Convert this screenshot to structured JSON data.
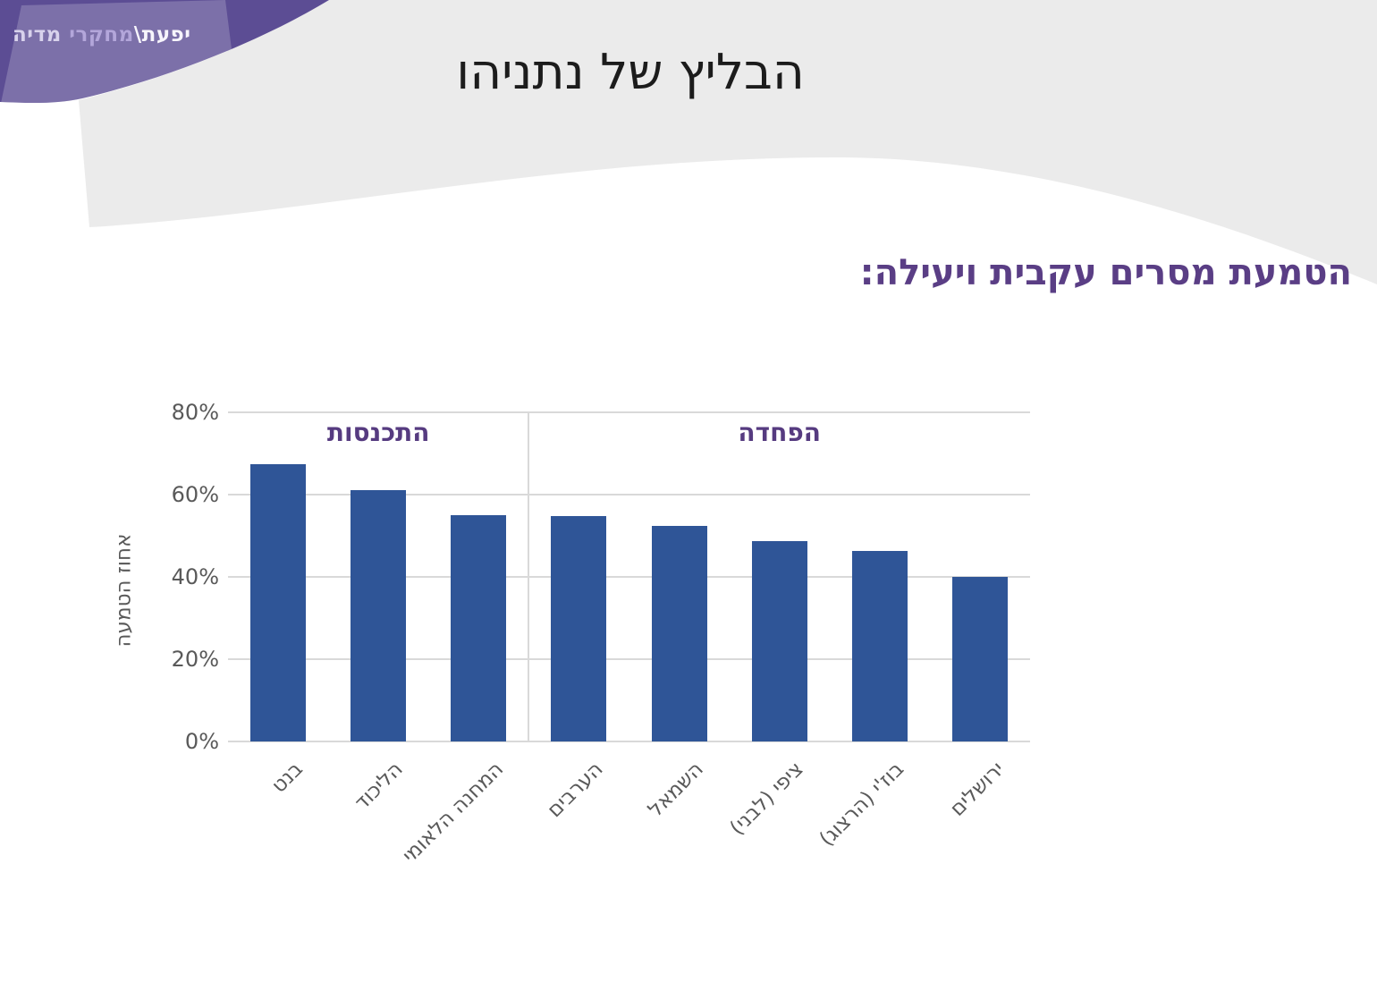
{
  "logo": {
    "brand": "יפעת\\",
    "middle": "מחקרי",
    "suffix": " מדיה"
  },
  "title": "הבליץ של נתניהו",
  "subtitle": "הטמעת מסרים עקבית ויעילה:",
  "chart_data": {
    "type": "bar",
    "title": "",
    "categories": [
      "בנט",
      "הליכוד",
      "המחנה הלאומי",
      "הערבים",
      "השמאל",
      "ציפי (לבני)",
      "בוז'י (הרצוג)",
      "ירושלים"
    ],
    "values": [
      67.5,
      61,
      55,
      54.8,
      52.3,
      48.6,
      46.3,
      40
    ],
    "xlabel": "",
    "ylabel": "אחוז הטמעה",
    "ylim": [
      0,
      80
    ],
    "yticks": [
      {
        "value": 0,
        "label": "0%"
      },
      {
        "value": 20,
        "label": "20%"
      },
      {
        "value": 40,
        "label": "40%"
      },
      {
        "value": 60,
        "label": "60%"
      },
      {
        "value": 80,
        "label": "80%"
      }
    ],
    "grid": true,
    "legend_position": "none",
    "groups": [
      {
        "label": "התכנסות",
        "start": 0,
        "end": 2
      },
      {
        "label": "הפחדה",
        "start": 3,
        "end": 7
      }
    ]
  },
  "colors": {
    "bar": "#2f5597",
    "grid": "#d9d9d9",
    "axis_text": "#595959",
    "title_text": "#1c1c1c",
    "subtitle_text": "#5a3e85",
    "group_text": "#563b80",
    "banner_purple": "#5c4d94",
    "banner_overlay": "rgba(255,255,255,0.2)",
    "swoosh_gray": "#ebebeb",
    "logo_brand": "#f7f5fc",
    "logo_middle": "#b3a6da",
    "logo_suffix": "#d8d2ec"
  }
}
